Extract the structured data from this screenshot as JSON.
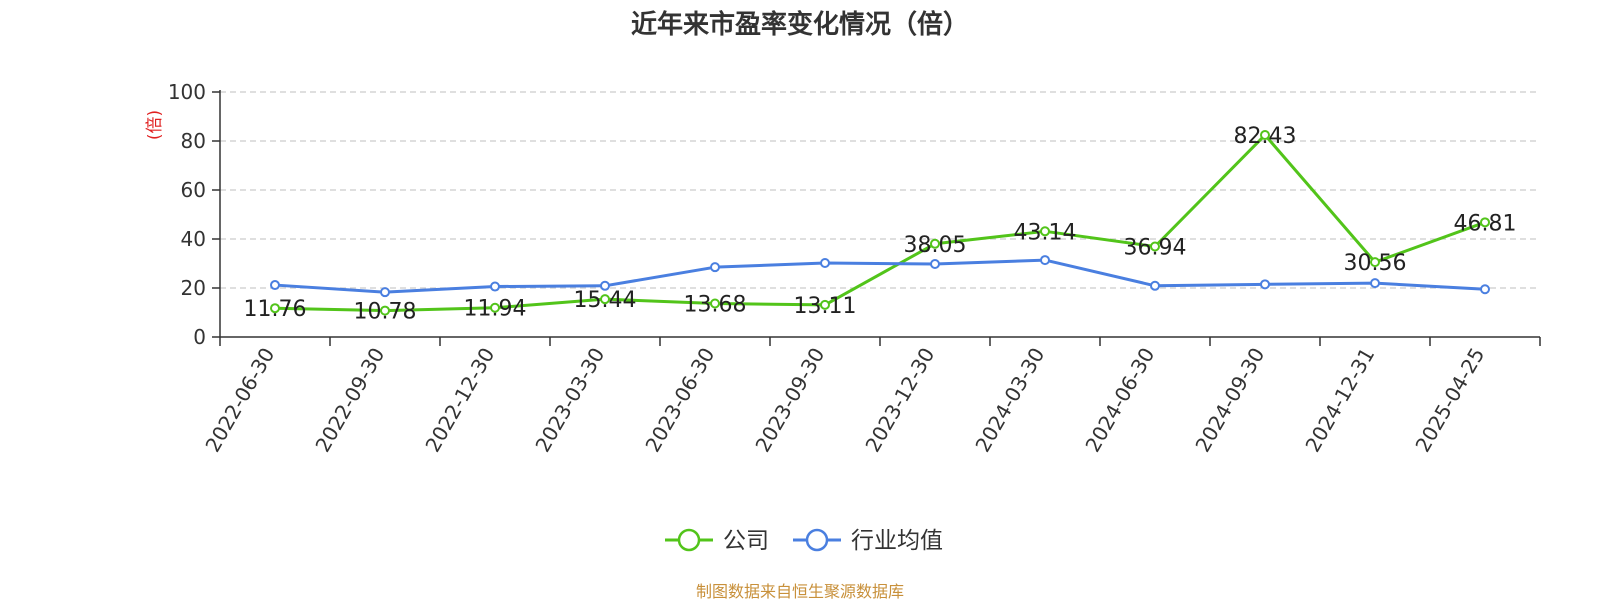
{
  "chart_data": {
    "type": "line",
    "title": "近年来市盈率变化情况（倍）",
    "ylabel": "(倍)",
    "xlabel": "",
    "ylim": [
      0,
      100
    ],
    "yticks": [
      0,
      20,
      40,
      60,
      80,
      100
    ],
    "grid": true,
    "legend_position": "bottom",
    "categories": [
      "2022-06-30",
      "2022-09-30",
      "2022-12-30",
      "2023-03-30",
      "2023-06-30",
      "2023-09-30",
      "2023-12-30",
      "2024-03-30",
      "2024-06-30",
      "2024-09-30",
      "2024-12-31",
      "2025-04-25"
    ],
    "series": [
      {
        "name": "公司",
        "color": "#52c41a",
        "values": [
          11.76,
          10.78,
          11.94,
          15.44,
          13.68,
          13.11,
          38.05,
          43.14,
          36.94,
          82.43,
          30.56,
          46.81
        ],
        "labels": [
          "11.76",
          "10.78",
          "11.94",
          "15.44",
          "13.68",
          "13.11",
          "38.05",
          "43.14",
          "36.94",
          "82.43",
          "30.56",
          "46.81"
        ]
      },
      {
        "name": "行业均值",
        "color": "#4a7fe0",
        "values": [
          21.2,
          18.3,
          20.6,
          20.9,
          28.5,
          30.2,
          29.8,
          31.4,
          20.9,
          21.5,
          22.0,
          19.5
        ]
      }
    ]
  },
  "footer": {
    "source": "制图数据来自恒生聚源数据库"
  }
}
